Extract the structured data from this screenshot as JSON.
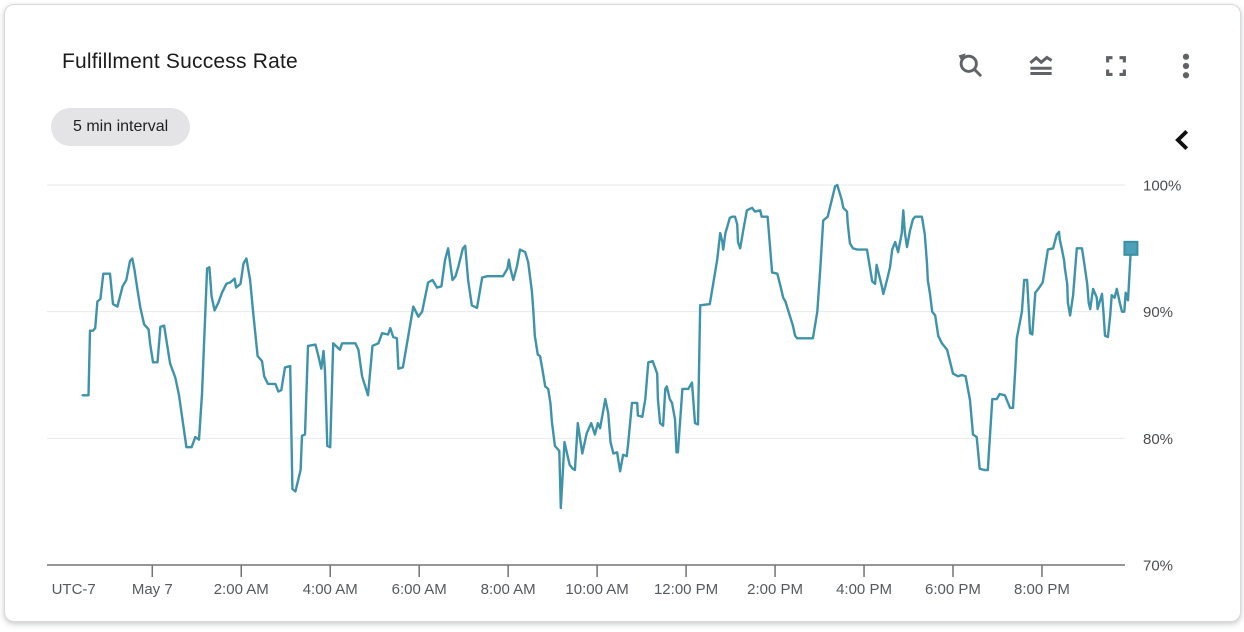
{
  "card": {
    "title": "Fulfillment Success Rate",
    "chip_label": "5 min interval",
    "toolbar": {
      "zoom_reset_icon": "zoom-reset",
      "legend_toggle_icon": "legend-toggle",
      "fullscreen_icon": "fullscreen",
      "more_options_icon": "more-vert",
      "collapse_icon": "chevron-left"
    }
  },
  "chart_data": {
    "type": "line",
    "title": "Fulfillment Success Rate",
    "interval": "5 min",
    "legend_position": "none",
    "grid": "horizontal-only",
    "style": {
      "line_color": "#3f93a8",
      "marker_fill": "#4ba1b5",
      "marker_stroke": "#3a8fa4",
      "grid_color": "#e8e8e8",
      "axis_color": "#737373",
      "x_label_color": "#56595d",
      "y_label_color": "#4a4d50",
      "icon_color": "#5f6368",
      "chevron_color": "#111111"
    },
    "x_axis": {
      "timezone_label": "UTC-7",
      "timezone_label_minutes": -106,
      "x_unit": "minutes_from_May7_00:00",
      "range_minutes": [
        -142,
        1312
      ],
      "ticks": [
        {
          "label": "May 7",
          "minutes": 0
        },
        {
          "label": "2:00 AM",
          "minutes": 120
        },
        {
          "label": "4:00 AM",
          "minutes": 240
        },
        {
          "label": "6:00 AM",
          "minutes": 360
        },
        {
          "label": "8:00 AM",
          "minutes": 480
        },
        {
          "label": "10:00 AM",
          "minutes": 600
        },
        {
          "label": "12:00 PM",
          "minutes": 720
        },
        {
          "label": "2:00 PM",
          "minutes": 840
        },
        {
          "label": "4:00 PM",
          "minutes": 960
        },
        {
          "label": "6:00 PM",
          "minutes": 1080
        },
        {
          "label": "8:00 PM",
          "minutes": 1200
        }
      ]
    },
    "y_axis": {
      "unit": "%",
      "range": [
        70,
        100
      ],
      "ticks": [
        {
          "label": "100%",
          "value": 100
        },
        {
          "label": "90%",
          "value": 90
        },
        {
          "label": "80%",
          "value": 80
        },
        {
          "label": "70%",
          "value": 70
        }
      ]
    },
    "current_value_pct": 95.0,
    "points": [
      [
        -94,
        83.4
      ],
      [
        -86,
        83.4
      ],
      [
        -84,
        88.5
      ],
      [
        -80,
        88.5
      ],
      [
        -77,
        88.7
      ],
      [
        -74,
        90.8
      ],
      [
        -70,
        91.0
      ],
      [
        -66,
        93.0
      ],
      [
        -57,
        93.0
      ],
      [
        -53,
        90.6
      ],
      [
        -47,
        90.4
      ],
      [
        -40,
        92.0
      ],
      [
        -35,
        92.5
      ],
      [
        -30,
        94.0
      ],
      [
        -27,
        94.2
      ],
      [
        -24,
        93.3
      ],
      [
        -20,
        91.7
      ],
      [
        -16,
        90.3
      ],
      [
        -11,
        89.0
      ],
      [
        -5,
        88.6
      ],
      [
        -3,
        87.5
      ],
      [
        1,
        86.0
      ],
      [
        7,
        86.0
      ],
      [
        11,
        88.8
      ],
      [
        16,
        88.9
      ],
      [
        20,
        87.4
      ],
      [
        24,
        85.9
      ],
      [
        31,
        84.8
      ],
      [
        36,
        83.4
      ],
      [
        40,
        81.8
      ],
      [
        46,
        79.3
      ],
      [
        53,
        79.3
      ],
      [
        58,
        80.1
      ],
      [
        63,
        79.9
      ],
      [
        67,
        83.5
      ],
      [
        74,
        93.4
      ],
      [
        77,
        93.5
      ],
      [
        80,
        91.2
      ],
      [
        84,
        90.1
      ],
      [
        89,
        90.7
      ],
      [
        94,
        91.5
      ],
      [
        100,
        92.2
      ],
      [
        105,
        92.3
      ],
      [
        111,
        92.6
      ],
      [
        113,
        91.9
      ],
      [
        119,
        92.2
      ],
      [
        123,
        93.8
      ],
      [
        127,
        94.2
      ],
      [
        132,
        92.5
      ],
      [
        136,
        90.0
      ],
      [
        142,
        86.5
      ],
      [
        148,
        86.1
      ],
      [
        151,
        84.9
      ],
      [
        156,
        84.3
      ],
      [
        166,
        84.3
      ],
      [
        170,
        83.7
      ],
      [
        174,
        83.8
      ],
      [
        179,
        85.6
      ],
      [
        186,
        85.7
      ],
      [
        189,
        76.0
      ],
      [
        193,
        75.8
      ],
      [
        200,
        77.5
      ],
      [
        202,
        80.2
      ],
      [
        206,
        80.3
      ],
      [
        210,
        87.3
      ],
      [
        220,
        87.4
      ],
      [
        224,
        86.5
      ],
      [
        228,
        85.5
      ],
      [
        231,
        86.9
      ],
      [
        233,
        85.3
      ],
      [
        236,
        79.4
      ],
      [
        240,
        79.3
      ],
      [
        244,
        87.5
      ],
      [
        253,
        87.0
      ],
      [
        256,
        87.5
      ],
      [
        274,
        87.5
      ],
      [
        278,
        87.0
      ],
      [
        283,
        84.9
      ],
      [
        291,
        83.4
      ],
      [
        297,
        87.3
      ],
      [
        305,
        87.5
      ],
      [
        310,
        88.3
      ],
      [
        318,
        88.2
      ],
      [
        321,
        88.7
      ],
      [
        325,
        88.0
      ],
      [
        330,
        87.9
      ],
      [
        332,
        85.5
      ],
      [
        338,
        85.6
      ],
      [
        345,
        88.0
      ],
      [
        352,
        90.4
      ],
      [
        359,
        89.6
      ],
      [
        364,
        90.0
      ],
      [
        372,
        92.3
      ],
      [
        378,
        92.5
      ],
      [
        384,
        91.9
      ],
      [
        390,
        92.0
      ],
      [
        395,
        94.1
      ],
      [
        399,
        95.0
      ],
      [
        405,
        92.5
      ],
      [
        409,
        92.8
      ],
      [
        413,
        93.6
      ],
      [
        419,
        95.0
      ],
      [
        422,
        95.2
      ],
      [
        426,
        92.5
      ],
      [
        431,
        90.5
      ],
      [
        438,
        90.3
      ],
      [
        445,
        92.7
      ],
      [
        452,
        92.8
      ],
      [
        473,
        92.8
      ],
      [
        479,
        93.4
      ],
      [
        481,
        94.1
      ],
      [
        483,
        93.4
      ],
      [
        487,
        92.5
      ],
      [
        492,
        93.6
      ],
      [
        496,
        94.9
      ],
      [
        503,
        94.7
      ],
      [
        507,
        93.9
      ],
      [
        512,
        91.6
      ],
      [
        514,
        90.0
      ],
      [
        516,
        88.1
      ],
      [
        520,
        86.6
      ],
      [
        523,
        86.5
      ],
      [
        526,
        85.5
      ],
      [
        530,
        84.1
      ],
      [
        534,
        83.9
      ],
      [
        537,
        82.8
      ],
      [
        539,
        81.3
      ],
      [
        543,
        79.4
      ],
      [
        549,
        79.0
      ],
      [
        551,
        74.5
      ],
      [
        556,
        79.7
      ],
      [
        561,
        78.4
      ],
      [
        563,
        77.9
      ],
      [
        567,
        77.6
      ],
      [
        570,
        77.5
      ],
      [
        574,
        81.2
      ],
      [
        580,
        78.8
      ],
      [
        586,
        80.4
      ],
      [
        592,
        81.2
      ],
      [
        597,
        80.3
      ],
      [
        601,
        81.2
      ],
      [
        604,
        80.8
      ],
      [
        611,
        83.1
      ],
      [
        615,
        82.0
      ],
      [
        618,
        79.7
      ],
      [
        622,
        78.8
      ],
      [
        627,
        78.9
      ],
      [
        631,
        77.4
      ],
      [
        635,
        78.7
      ],
      [
        640,
        78.6
      ],
      [
        642,
        79.7
      ],
      [
        647,
        82.8
      ],
      [
        654,
        82.8
      ],
      [
        655,
        81.8
      ],
      [
        661,
        81.7
      ],
      [
        665,
        83.1
      ],
      [
        669,
        86.0
      ],
      [
        675,
        86.1
      ],
      [
        681,
        85.1
      ],
      [
        682,
        83.1
      ],
      [
        685,
        81.2
      ],
      [
        689,
        81.0
      ],
      [
        692,
        83.9
      ],
      [
        694,
        84.1
      ],
      [
        698,
        83.1
      ],
      [
        701,
        82.8
      ],
      [
        705,
        81.5
      ],
      [
        707,
        78.9
      ],
      [
        709,
        78.9
      ],
      [
        715,
        83.9
      ],
      [
        723,
        83.9
      ],
      [
        728,
        84.4
      ],
      [
        732,
        81.2
      ],
      [
        736,
        81.1
      ],
      [
        739,
        90.5
      ],
      [
        752,
        90.6
      ],
      [
        762,
        94.1
      ],
      [
        766,
        96.2
      ],
      [
        769,
        95.5
      ],
      [
        770,
        94.9
      ],
      [
        773,
        96.2
      ],
      [
        775,
        96.6
      ],
      [
        779,
        97.4
      ],
      [
        782,
        97.5
      ],
      [
        786,
        97.5
      ],
      [
        789,
        96.9
      ],
      [
        790,
        95.5
      ],
      [
        793,
        95.0
      ],
      [
        797,
        96.4
      ],
      [
        802,
        98.0
      ],
      [
        809,
        98.2
      ],
      [
        813,
        97.9
      ],
      [
        820,
        98.0
      ],
      [
        822,
        97.5
      ],
      [
        830,
        97.5
      ],
      [
        836,
        93.1
      ],
      [
        843,
        93.0
      ],
      [
        847,
        92.1
      ],
      [
        851,
        91.1
      ],
      [
        854,
        90.8
      ],
      [
        864,
        88.9
      ],
      [
        867,
        88.1
      ],
      [
        870,
        87.9
      ],
      [
        891,
        87.9
      ],
      [
        897,
        90.0
      ],
      [
        901,
        93.4
      ],
      [
        905,
        97.2
      ],
      [
        911,
        97.5
      ],
      [
        921,
        99.9
      ],
      [
        924,
        100.0
      ],
      [
        930,
        98.8
      ],
      [
        932,
        98.2
      ],
      [
        937,
        97.9
      ],
      [
        938,
        97.0
      ],
      [
        941,
        95.4
      ],
      [
        945,
        95.0
      ],
      [
        951,
        94.9
      ],
      [
        964,
        94.9
      ],
      [
        971,
        92.4
      ],
      [
        975,
        92.2
      ],
      [
        977,
        93.7
      ],
      [
        984,
        92.0
      ],
      [
        986,
        91.4
      ],
      [
        991,
        92.5
      ],
      [
        995,
        93.5
      ],
      [
        998,
        94.9
      ],
      [
        1002,
        95.5
      ],
      [
        1006,
        94.7
      ],
      [
        1011,
        96.2
      ],
      [
        1013,
        98.0
      ],
      [
        1015,
        96.3
      ],
      [
        1018,
        95.1
      ],
      [
        1022,
        96.4
      ],
      [
        1026,
        97.3
      ],
      [
        1029,
        97.5
      ],
      [
        1038,
        97.5
      ],
      [
        1042,
        96.1
      ],
      [
        1045,
        93.8
      ],
      [
        1046,
        92.5
      ],
      [
        1049,
        91.4
      ],
      [
        1052,
        90.0
      ],
      [
        1056,
        89.7
      ],
      [
        1060,
        88.1
      ],
      [
        1065,
        87.5
      ],
      [
        1072,
        87.0
      ],
      [
        1080,
        85.1
      ],
      [
        1087,
        84.9
      ],
      [
        1092,
        85.0
      ],
      [
        1097,
        84.9
      ],
      [
        1103,
        83.0
      ],
      [
        1107,
        80.3
      ],
      [
        1112,
        80.1
      ],
      [
        1116,
        77.6
      ],
      [
        1122,
        77.5
      ],
      [
        1127,
        77.5
      ],
      [
        1133,
        83.1
      ],
      [
        1139,
        83.1
      ],
      [
        1143,
        83.5
      ],
      [
        1150,
        83.4
      ],
      [
        1157,
        82.4
      ],
      [
        1161,
        82.4
      ],
      [
        1164,
        85.5
      ],
      [
        1166,
        87.9
      ],
      [
        1173,
        90.0
      ],
      [
        1176,
        92.5
      ],
      [
        1180,
        92.5
      ],
      [
        1184,
        88.3
      ],
      [
        1187,
        88.2
      ],
      [
        1191,
        91.5
      ],
      [
        1195,
        91.8
      ],
      [
        1201,
        92.3
      ],
      [
        1208,
        94.9
      ],
      [
        1215,
        95.0
      ],
      [
        1220,
        96.1
      ],
      [
        1223,
        96.3
      ],
      [
        1224,
        95.7
      ],
      [
        1227,
        94.9
      ],
      [
        1230,
        94.0
      ],
      [
        1231,
        93.4
      ],
      [
        1234,
        92.2
      ],
      [
        1235,
        90.7
      ],
      [
        1238,
        89.7
      ],
      [
        1242,
        91.3
      ],
      [
        1247,
        95.0
      ],
      [
        1254,
        95.0
      ],
      [
        1258,
        93.4
      ],
      [
        1261,
        92.2
      ],
      [
        1263,
        90.7
      ],
      [
        1265,
        90.2
      ],
      [
        1269,
        91.8
      ],
      [
        1274,
        91.1
      ],
      [
        1275,
        90.2
      ],
      [
        1281,
        91.4
      ],
      [
        1283,
        89.9
      ],
      [
        1285,
        88.1
      ],
      [
        1289,
        88.0
      ],
      [
        1292,
        89.7
      ],
      [
        1294,
        91.3
      ],
      [
        1298,
        91.1
      ],
      [
        1301,
        91.8
      ],
      [
        1305,
        90.7
      ],
      [
        1308,
        90.0
      ],
      [
        1311,
        90.0
      ],
      [
        1313,
        91.5
      ],
      [
        1316,
        90.9
      ],
      [
        1320,
        95.0
      ]
    ]
  }
}
